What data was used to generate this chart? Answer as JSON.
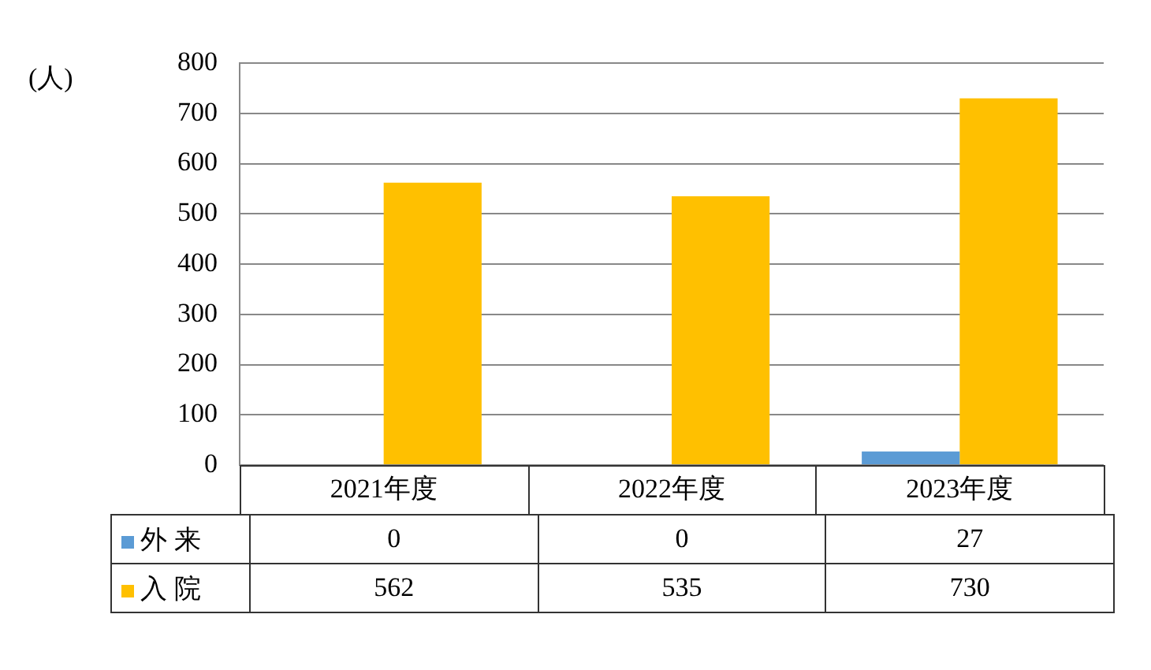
{
  "chart_data": {
    "type": "bar",
    "ylabel": "(人)",
    "categories": [
      "2021年度",
      "2022年度",
      "2023年度"
    ],
    "series": [
      {
        "name": "外 来",
        "color": "#5b9bd5",
        "values": [
          0,
          0,
          27
        ]
      },
      {
        "name": "入 院",
        "color": "#ffc000",
        "values": [
          562,
          535,
          730
        ]
      }
    ],
    "ylim": [
      0,
      800
    ],
    "yticks": [
      0,
      100,
      200,
      300,
      400,
      500,
      600,
      700,
      800
    ],
    "grid": "y",
    "legend": "bottom left",
    "data_labels": true
  }
}
